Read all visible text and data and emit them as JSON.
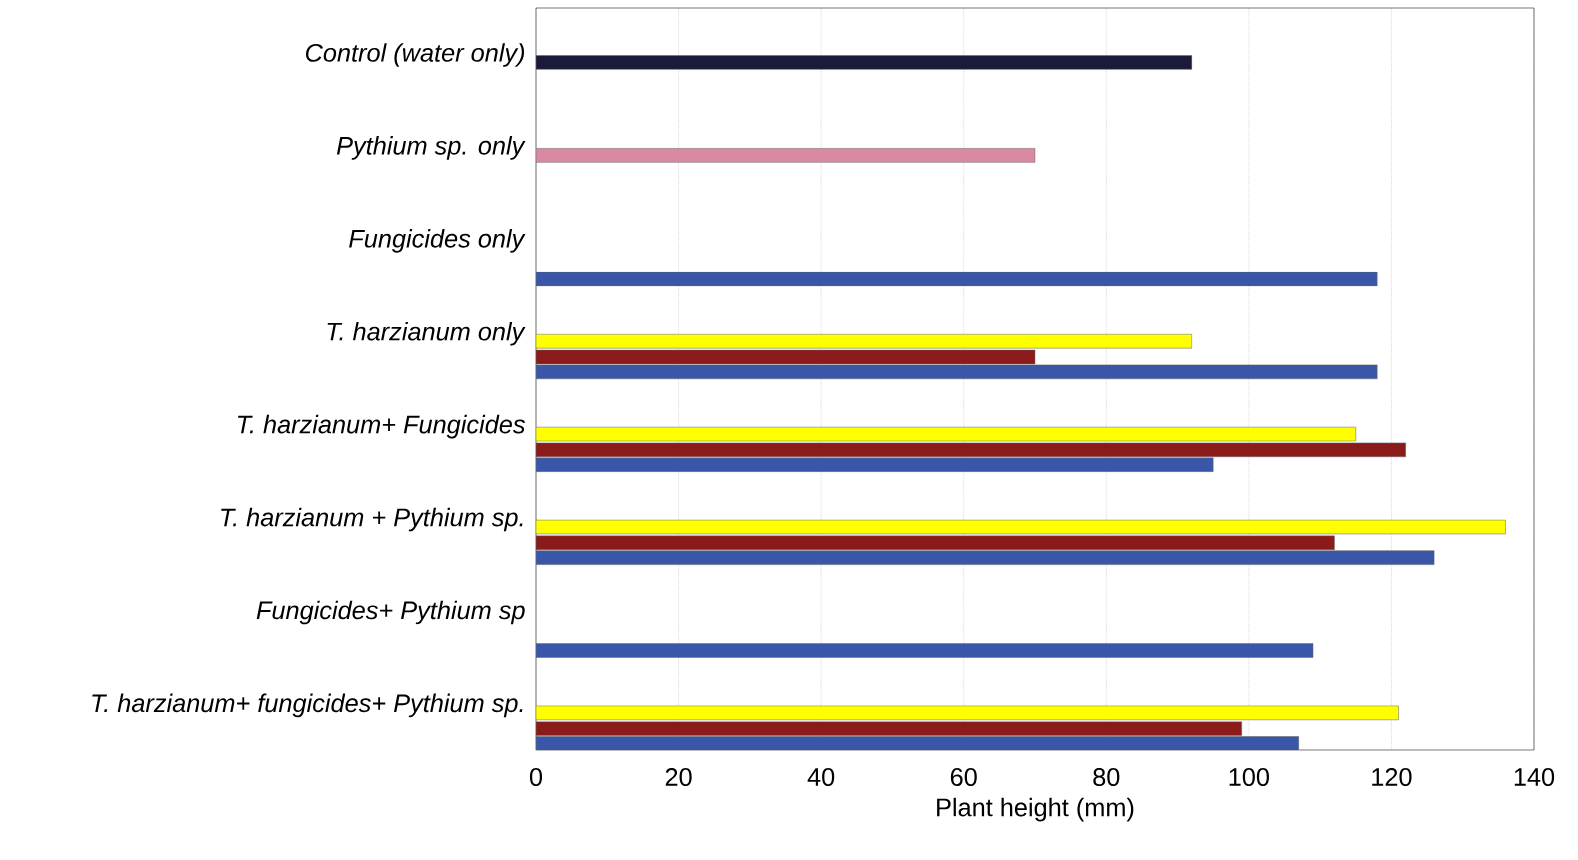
{
  "chart_data": {
    "type": "bar",
    "orientation": "horizontal",
    "xlabel": "Plant height (mm)",
    "categories": [
      "*Control (water only)*",
      "*Pythium sp. only*",
      "*Fungicides only*",
      "*T. harzianum only*",
      "*T. harzianum+ Fungicides*",
      "*T. harzianum + Pythium sp.*",
      "*Fungicides+ Pythium sp*",
      "*T. harzianum+ fungicides+ Pythium sp.*"
    ],
    "series": [
      {
        "colors": [
          "#1a1a3a",
          "#d98aa0",
          "#ffff00",
          "#ffff00",
          "#ffff00",
          "#ffff00",
          "#ffff00",
          "#ffff00"
        ],
        "values": [
          92,
          70,
          null,
          92,
          115,
          136,
          null,
          121
        ]
      },
      {
        "color": "#8b1a1a",
        "values": [
          null,
          null,
          null,
          70,
          122,
          112,
          null,
          99
        ]
      },
      {
        "color": "#3a56a8",
        "values": [
          null,
          null,
          118,
          118,
          95,
          126,
          109,
          107
        ]
      }
    ],
    "xlim": [
      0,
      140
    ],
    "xticks": [
      0,
      20,
      40,
      60,
      80,
      100,
      120,
      140
    ],
    "grid": "x"
  }
}
